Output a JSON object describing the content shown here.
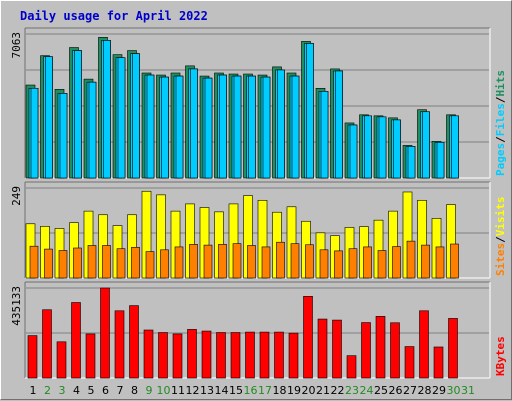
{
  "title": "Daily usage for April 2022",
  "colors": {
    "background": "#c0c0c0",
    "hits": "#1f8f60",
    "files": "#00ccff",
    "pages": "#00ccff",
    "visits": "#ffff00",
    "sites": "#ff8000",
    "kbytes": "#ff0000",
    "weekday_label": "#000000",
    "weekend_label": "#228b22",
    "title": "#0000cc"
  },
  "chart_data": [
    {
      "type": "bar",
      "panel": "hits-files-pages",
      "ymax_label": "7063",
      "ymax": 7063,
      "legend": [
        "Pages",
        "/",
        "Files",
        "/",
        "Hits"
      ],
      "categories": [
        "1",
        "2",
        "3",
        "4",
        "5",
        "6",
        "7",
        "8",
        "9",
        "10",
        "11",
        "12",
        "13",
        "14",
        "15",
        "16",
        "17",
        "18",
        "19",
        "20",
        "21",
        "22",
        "23",
        "24",
        "25",
        "26",
        "27",
        "28",
        "29",
        "30",
        "31"
      ],
      "weekend": [
        false,
        true,
        true,
        false,
        false,
        false,
        false,
        false,
        true,
        true,
        false,
        false,
        false,
        false,
        false,
        true,
        true,
        false,
        false,
        false,
        false,
        false,
        true,
        true,
        false,
        false,
        false,
        false,
        false,
        true,
        true
      ],
      "series": [
        {
          "name": "Hits",
          "values": [
            4560,
            6000,
            4350,
            6400,
            4850,
            6900,
            6050,
            6250,
            5150,
            5050,
            5150,
            5500,
            5000,
            5150,
            5100,
            5100,
            5050,
            5450,
            5150,
            6700,
            4400,
            5350,
            2700,
            3100,
            3050,
            2950,
            1600,
            3350,
            1800,
            3100,
            0
          ]
        },
        {
          "name": "Files",
          "values": [
            4400,
            5950,
            4150,
            6250,
            4700,
            6750,
            5900,
            6100,
            5050,
            4950,
            5000,
            5350,
            4900,
            5050,
            5000,
            5000,
            4950,
            5300,
            5000,
            6600,
            4250,
            5250,
            2600,
            3050,
            3000,
            2850,
            1550,
            3250,
            1750,
            3050,
            0
          ]
        },
        {
          "name": "Pages",
          "values": [
            4400,
            5950,
            4150,
            6250,
            4700,
            6750,
            5900,
            6100,
            5050,
            4950,
            5000,
            5350,
            4900,
            5050,
            5000,
            5000,
            4950,
            5300,
            5000,
            6600,
            4250,
            5250,
            2600,
            3050,
            3000,
            2850,
            1550,
            3250,
            1750,
            3050,
            0
          ]
        }
      ]
    },
    {
      "type": "bar",
      "panel": "visits-sites",
      "ymax_label": "249",
      "ymax": 249,
      "legend": [
        "Sites",
        "/",
        "Visits"
      ],
      "categories": [
        "1",
        "2",
        "3",
        "4",
        "5",
        "6",
        "7",
        "8",
        "9",
        "10",
        "11",
        "12",
        "13",
        "14",
        "15",
        "16",
        "17",
        "18",
        "19",
        "20",
        "21",
        "22",
        "23",
        "24",
        "25",
        "26",
        "27",
        "28",
        "29",
        "30",
        "31"
      ],
      "series": [
        {
          "name": "Visits",
          "values": [
            150,
            143,
            137,
            153,
            185,
            175,
            145,
            175,
            240,
            230,
            185,
            205,
            195,
            183,
            205,
            228,
            215,
            182,
            197,
            157,
            125,
            117,
            140,
            142,
            160,
            185,
            238,
            215,
            165,
            203,
            0
          ]
        },
        {
          "name": "Sites",
          "values": [
            88,
            80,
            76,
            83,
            90,
            90,
            81,
            85,
            73,
            78,
            86,
            93,
            91,
            93,
            95,
            90,
            86,
            99,
            95,
            92,
            78,
            75,
            81,
            86,
            76,
            87,
            102,
            91,
            86,
            94,
            0
          ]
        }
      ]
    },
    {
      "type": "bar",
      "panel": "kbytes",
      "ymax_label": "435133",
      "ymax": 435133,
      "legend": [
        "KBytes"
      ],
      "categories": [
        "1",
        "2",
        "3",
        "4",
        "5",
        "6",
        "7",
        "8",
        "9",
        "10",
        "11",
        "12",
        "13",
        "14",
        "15",
        "16",
        "17",
        "18",
        "19",
        "20",
        "21",
        "22",
        "23",
        "24",
        "25",
        "26",
        "27",
        "28",
        "29",
        "30",
        "31"
      ],
      "series": [
        {
          "name": "KBytes",
          "values": [
            205000,
            330000,
            175000,
            365000,
            213000,
            435133,
            325000,
            350000,
            232000,
            220000,
            213000,
            235000,
            227000,
            220000,
            220000,
            222000,
            222000,
            222000,
            217000,
            395000,
            285000,
            280000,
            108000,
            268000,
            298000,
            267000,
            152000,
            325000,
            150000,
            288000,
            0
          ]
        }
      ]
    }
  ]
}
